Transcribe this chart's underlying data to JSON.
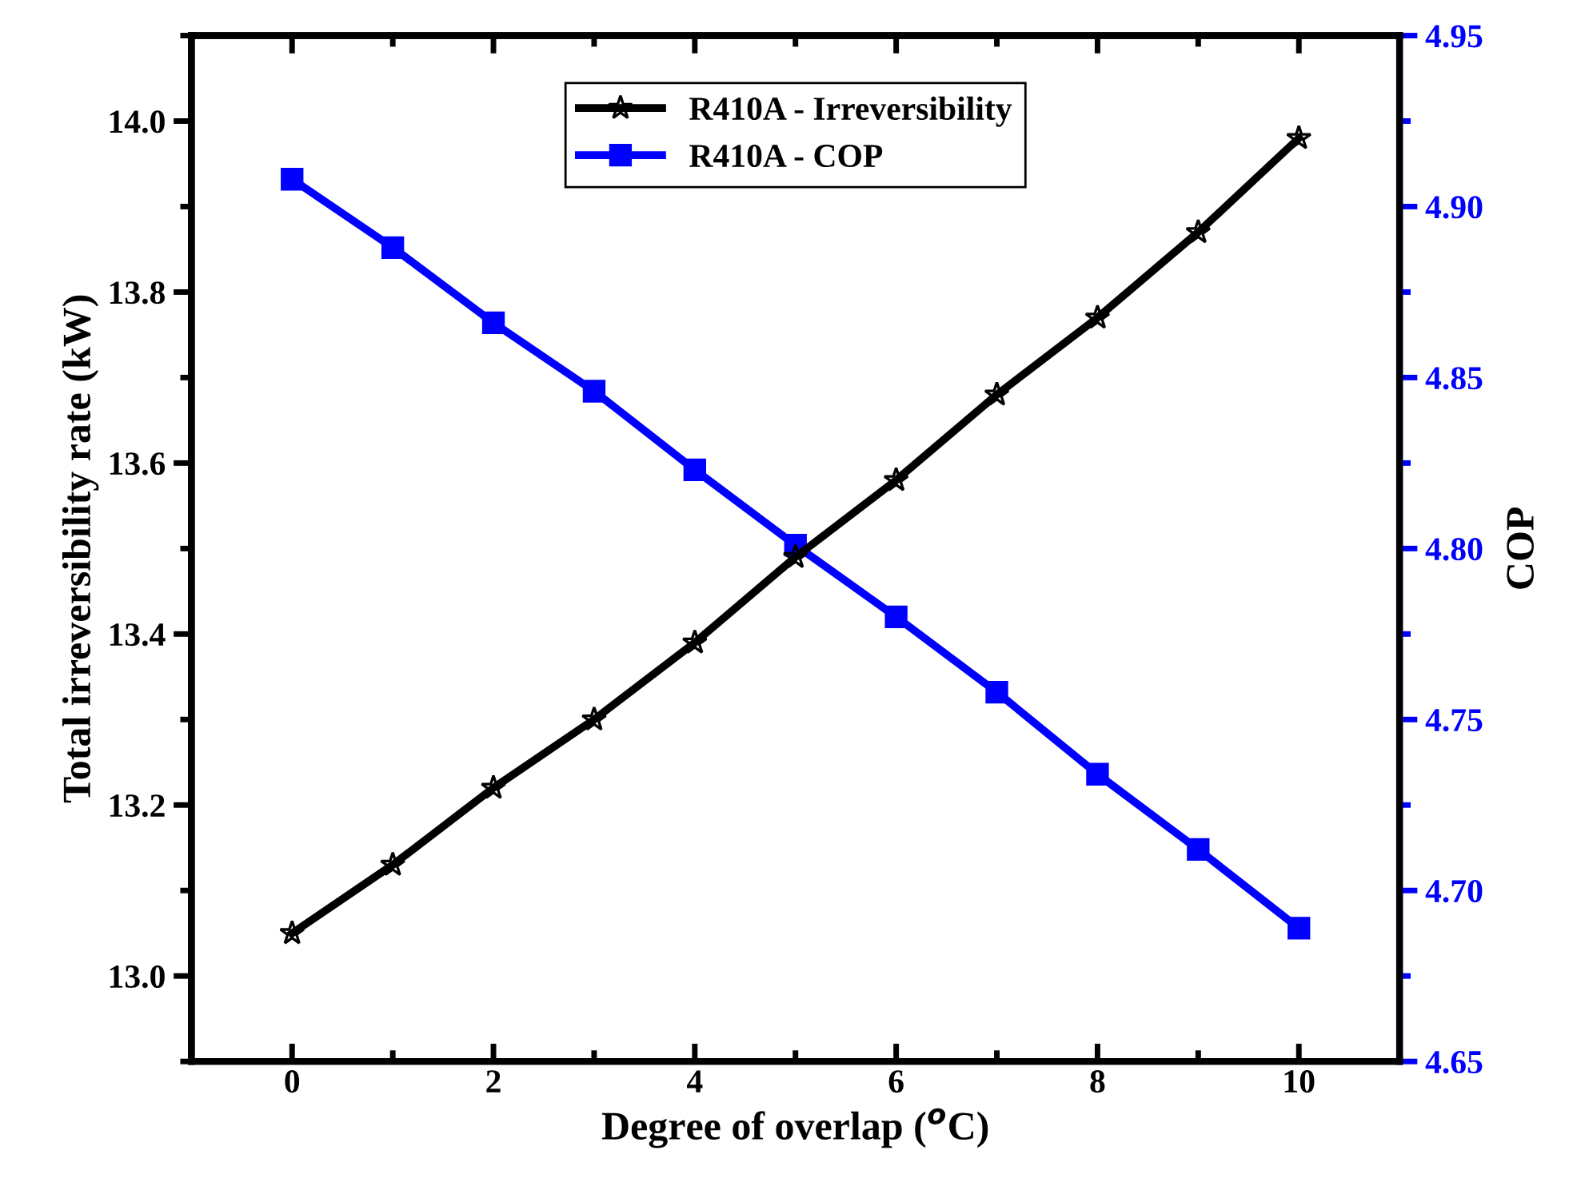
{
  "chart_data": {
    "type": "line",
    "xlabel": "Degree of overlap ($^{o}$C)",
    "ylabel": "Total irreversibility rate (kW)",
    "y2label": "COP",
    "x": [
      0,
      1,
      2,
      3,
      4,
      5,
      6,
      7,
      8,
      9,
      10
    ],
    "series": [
      {
        "name": "R410A - Irreversibility",
        "color": "#000000",
        "marker": "star",
        "axis": "y",
        "values": [
          13.05,
          13.13,
          13.22,
          13.3,
          13.39,
          13.49,
          13.58,
          13.68,
          13.77,
          13.87,
          13.98
        ]
      },
      {
        "name": "R410A - COP",
        "color": "#0000ff",
        "marker": "square",
        "axis": "y2",
        "values": [
          4.908,
          4.888,
          4.866,
          4.846,
          4.823,
          4.801,
          4.78,
          4.758,
          4.734,
          4.712,
          4.689
        ]
      }
    ],
    "xlim": [
      -1,
      11
    ],
    "xticks": [
      0,
      2,
      4,
      6,
      8,
      10
    ],
    "ylim": [
      12.9,
      14.1
    ],
    "yticks": [
      {
        "value": 13.0,
        "label": "13.0"
      },
      {
        "value": 13.2,
        "label": "13.2"
      },
      {
        "value": 13.4,
        "label": "13.4"
      },
      {
        "value": 13.6,
        "label": "13.6"
      },
      {
        "value": 13.8,
        "label": "13.8"
      },
      {
        "value": 14.0,
        "label": "14.0"
      }
    ],
    "y2lim": [
      4.65,
      4.95
    ],
    "y2ticks": [
      4.65,
      {
        "value": 4.7,
        "label": "4.70"
      },
      4.75,
      {
        "value": 4.8,
        "label": "4.80"
      },
      4.85,
      {
        "value": 4.9,
        "label": "4.90"
      },
      4.95
    ],
    "grid": false,
    "legend": "top",
    "line_style": "solid"
  }
}
